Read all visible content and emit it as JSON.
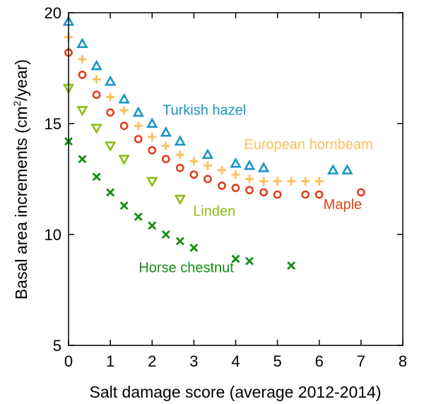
{
  "chart_data": {
    "type": "scatter",
    "xlabel": "Salt damage score (average 2012-2014)",
    "ylabel_parts": {
      "before": "Basal area increments (cm",
      "superscript": "2",
      "after": "/year)"
    },
    "xlim": [
      0,
      8
    ],
    "ylim": [
      5,
      20
    ],
    "xticks": [
      0,
      1,
      2,
      3,
      4,
      5,
      6,
      7,
      8
    ],
    "yticks": [
      5,
      10,
      15,
      20
    ],
    "grid": false,
    "series": [
      {
        "name": "Turkish hazel",
        "marker": "triangle-up",
        "color": "#1a96c8",
        "label_at": [
          2.25,
          15.4
        ],
        "x": [
          0,
          0.33,
          0.67,
          1,
          1.33,
          1.67,
          2,
          2.33,
          2.67,
          3.33,
          4,
          4.33,
          4.67,
          6.33,
          6.67
        ],
        "y": [
          19.6,
          18.6,
          17.6,
          16.9,
          16.1,
          15.5,
          15.0,
          14.6,
          14.2,
          13.6,
          13.2,
          13.1,
          13.0,
          12.9,
          12.9
        ]
      },
      {
        "name": "European hornbeam",
        "marker": "plus",
        "color": "#fac05a",
        "label_at": [
          4.2,
          13.85
        ],
        "x": [
          0,
          0.33,
          0.67,
          1,
          1.33,
          1.67,
          2,
          2.33,
          2.67,
          3,
          3.33,
          3.67,
          4,
          4.33,
          4.67,
          5,
          5.33,
          5.67,
          6
        ],
        "y": [
          18.9,
          17.9,
          17.0,
          16.2,
          15.6,
          14.9,
          14.4,
          14.0,
          13.6,
          13.3,
          13.1,
          12.9,
          12.7,
          12.5,
          12.4,
          12.4,
          12.4,
          12.4,
          12.4
        ]
      },
      {
        "name": "Maple",
        "marker": "circle",
        "color": "#e0401e",
        "label_at": [
          6.1,
          11.15
        ],
        "x": [
          0,
          0.33,
          0.67,
          1,
          1.33,
          1.67,
          2,
          2.33,
          2.67,
          3,
          3.33,
          3.67,
          4,
          4.33,
          4.67,
          5,
          5.67,
          6,
          7
        ],
        "y": [
          18.2,
          17.2,
          16.3,
          15.5,
          14.9,
          14.3,
          13.8,
          13.4,
          13.0,
          12.7,
          12.5,
          12.2,
          12.1,
          12.0,
          11.9,
          11.8,
          11.8,
          11.8,
          11.9
        ]
      },
      {
        "name": "Linden",
        "marker": "triangle-down",
        "color": "#8cbe14",
        "label_at": [
          2.98,
          10.85
        ],
        "x": [
          0,
          0.33,
          0.67,
          1,
          1.33,
          2,
          2.67
        ],
        "y": [
          16.6,
          15.6,
          14.8,
          14.0,
          13.4,
          12.4,
          11.6
        ]
      },
      {
        "name": "Horse chestnut",
        "marker": "x",
        "color": "#148c14",
        "label_at": [
          1.68,
          8.3
        ],
        "x": [
          0,
          0.33,
          0.67,
          1,
          1.33,
          1.67,
          2,
          2.33,
          2.67,
          3,
          4,
          4.33,
          5.33
        ],
        "y": [
          14.2,
          13.4,
          12.6,
          11.9,
          11.3,
          10.8,
          10.4,
          10.0,
          9.7,
          9.4,
          8.9,
          8.8,
          8.6
        ]
      }
    ]
  }
}
